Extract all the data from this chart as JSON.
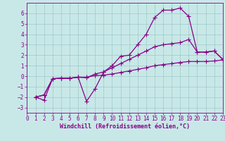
{
  "background_color": "#c8e8e8",
  "grid_color": "#a0c8c8",
  "line_color": "#880088",
  "markersize": 2.5,
  "linewidth": 0.9,
  "xlim": [
    0,
    23
  ],
  "ylim": [
    -3.5,
    7.0
  ],
  "yticks": [
    -3,
    -2,
    -1,
    0,
    1,
    2,
    3,
    4,
    5,
    6
  ],
  "xticks": [
    0,
    1,
    2,
    3,
    4,
    5,
    6,
    7,
    8,
    9,
    10,
    11,
    12,
    13,
    14,
    15,
    16,
    17,
    18,
    19,
    20,
    21,
    22,
    23
  ],
  "xlabel": "Windchill (Refroidissement éolien,°C)",
  "xlabel_fontsize": 6.0,
  "tick_fontsize": 5.5,
  "series": [
    {
      "x": [
        1,
        2,
        3,
        4,
        5,
        6,
        7,
        8,
        9,
        10,
        11,
        12,
        13,
        14,
        15,
        16,
        17,
        18,
        19,
        20,
        21,
        22,
        23
      ],
      "y": [
        -2.0,
        -2.3,
        -0.25,
        -0.2,
        -0.2,
        -0.1,
        -2.4,
        -1.2,
        0.4,
        1.0,
        1.9,
        2.0,
        3.0,
        4.0,
        5.6,
        6.3,
        6.3,
        6.5,
        5.7,
        2.3,
        2.3,
        2.4,
        1.6
      ]
    },
    {
      "x": [
        1,
        2,
        3,
        4,
        5,
        6,
        7,
        8,
        9,
        10,
        11,
        12,
        13,
        14,
        15,
        16,
        17,
        18,
        19,
        20,
        21,
        22,
        23
      ],
      "y": [
        -2.0,
        -1.8,
        -0.25,
        -0.2,
        -0.2,
        -0.1,
        -0.15,
        0.2,
        0.4,
        0.8,
        1.2,
        1.6,
        2.0,
        2.4,
        2.8,
        3.0,
        3.1,
        3.2,
        3.5,
        2.3,
        2.3,
        2.4,
        1.6
      ]
    },
    {
      "x": [
        1,
        2,
        3,
        4,
        5,
        6,
        7,
        8,
        9,
        10,
        11,
        12,
        13,
        14,
        15,
        16,
        17,
        18,
        19,
        20,
        21,
        22,
        23
      ],
      "y": [
        -2.0,
        -1.8,
        -0.25,
        -0.2,
        -0.2,
        -0.1,
        -0.1,
        0.05,
        0.1,
        0.2,
        0.35,
        0.5,
        0.65,
        0.8,
        1.0,
        1.1,
        1.2,
        1.3,
        1.4,
        1.4,
        1.4,
        1.45,
        1.55
      ]
    }
  ]
}
